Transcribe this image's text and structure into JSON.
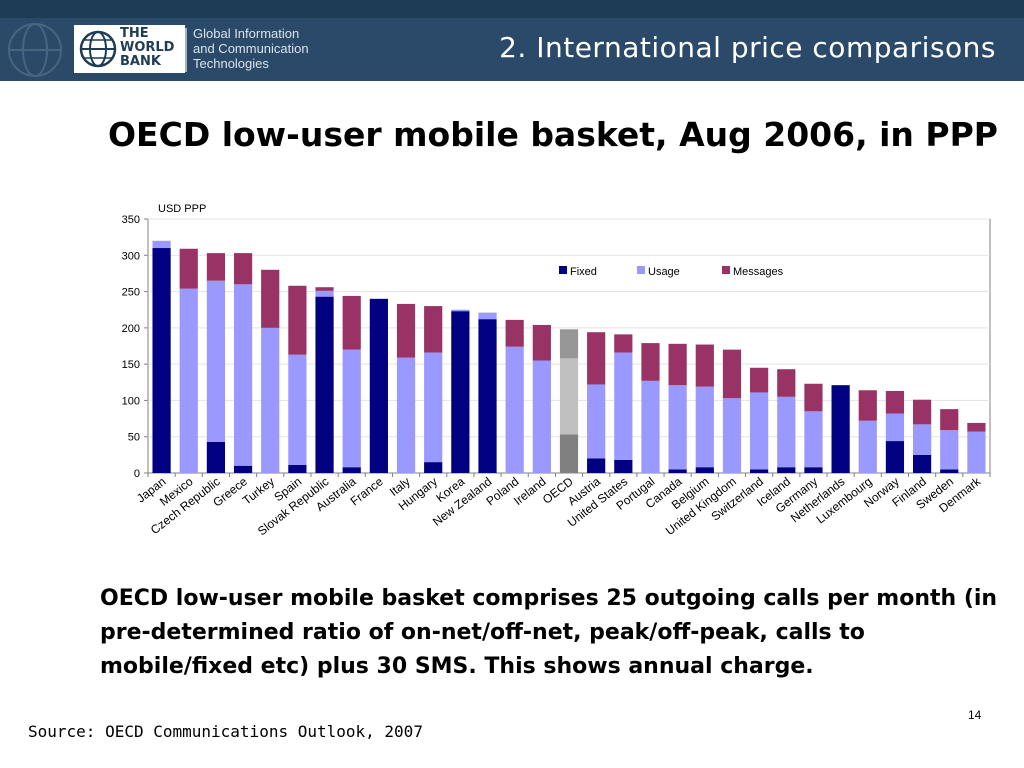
{
  "header": {
    "logo_lines": [
      "THE",
      "WORLD",
      "BANK"
    ],
    "org_lines": [
      "Global Information",
      "and Communication",
      "Technologies"
    ],
    "section_title": "2. International price comparisons"
  },
  "slide": {
    "title": "OECD low-user mobile basket, Aug 2006, in PPP",
    "caption": "OECD low-user mobile basket comprises 25 outgoing calls per month (in pre-determined ratio of on-net/off-net, peak/off-peak, calls to mobile/fixed etc) plus 30 SMS. This shows annual charge.",
    "source": "Source: OECD Communications Outlook, 2007",
    "page_number": "14"
  },
  "colors": {
    "header_bg": "#1f3c57",
    "fixed": "#000080",
    "usage": "#9999ff",
    "messages": "#993366",
    "oecd_fixed": "#808080",
    "oecd_usage": "#c0c0c0",
    "oecd_messages": "#969696"
  },
  "chart_data": {
    "type": "bar",
    "stacked": true,
    "title": "",
    "ylabel": "USD PPP",
    "xlabel": "",
    "ylim": [
      0,
      350
    ],
    "yticks": [
      0,
      50,
      100,
      150,
      200,
      250,
      300,
      350
    ],
    "grid": true,
    "legend_position": "top-right",
    "categories": [
      "Japan",
      "Mexico",
      "Czech Republic",
      "Greece",
      "Turkey",
      "Spain",
      "Slovak Republic",
      "Australia",
      "France",
      "Italy",
      "Hungary",
      "Korea",
      "New Zealand",
      "Poland",
      "Ireland",
      "OECD",
      "Austria",
      "United States",
      "Portugal",
      "Canada",
      "Belgium",
      "United Kingdom",
      "Switzerland",
      "Iceland",
      "Germany",
      "Netherlands",
      "Luxembourg",
      "Norway",
      "Finland",
      "Sweden",
      "Denmark"
    ],
    "highlight_category": "OECD",
    "series": [
      {
        "name": "Fixed",
        "values": [
          310,
          0,
          43,
          10,
          0,
          11,
          243,
          8,
          240,
          0,
          15,
          223,
          212,
          0,
          0,
          53,
          20,
          18,
          0,
          5,
          8,
          0,
          5,
          8,
          8,
          121,
          0,
          44,
          25,
          5,
          0
        ]
      },
      {
        "name": "Usage",
        "values": [
          10,
          254,
          222,
          250,
          200,
          152,
          8,
          162,
          0,
          159,
          151,
          2,
          9,
          174,
          155,
          105,
          102,
          148,
          127,
          116,
          111,
          103,
          106,
          97,
          77,
          0,
          72,
          38,
          42,
          54,
          57
        ]
      },
      {
        "name": "Messages",
        "values": [
          0,
          55,
          38,
          43,
          80,
          95,
          5,
          74,
          0,
          74,
          64,
          0,
          0,
          37,
          49,
          40,
          72,
          25,
          52,
          57,
          58,
          67,
          34,
          38,
          38,
          0,
          42,
          31,
          34,
          29,
          12
        ]
      }
    ]
  }
}
